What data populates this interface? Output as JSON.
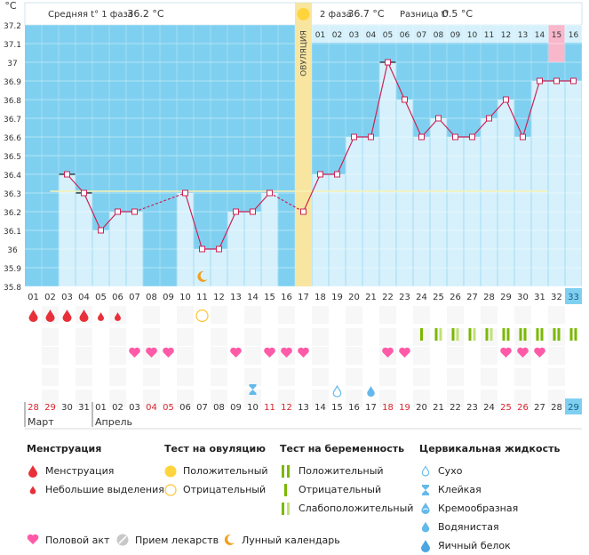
{
  "chart_data": {
    "type": "line",
    "y_unit": "°C",
    "ylim": [
      35.8,
      37.2
    ],
    "y_ticks": [
      "37.2",
      "37.1",
      "37",
      "36.9",
      "36.8",
      "36.7",
      "36.6",
      "36.5",
      "36.4",
      "36.3",
      "36.2",
      "36.1",
      "36",
      "35.9",
      "35.8"
    ],
    "header": {
      "phase1_label": "Средняя t° 1 фаза",
      "phase1_value": "36.2 °C",
      "phase2_label": "2 фаза",
      "phase2_value": "36.7 °C",
      "diff_label": "Разница t°",
      "diff_value": "0.5 °C"
    },
    "ovulation_label": "ОВУЛЯЦИЯ",
    "ovulation_day": 17,
    "cycle_days": [
      "01",
      "02",
      "03",
      "04",
      "05",
      "06",
      "07",
      "08",
      "09",
      "10",
      "11",
      "12",
      "13",
      "14",
      "15",
      "16",
      "17",
      "18",
      "19",
      "20",
      "21",
      "22",
      "23",
      "24",
      "25",
      "26",
      "27",
      "28",
      "29",
      "30",
      "31",
      "32",
      "33"
    ],
    "phase2_days": [
      "01",
      "02",
      "03",
      "04",
      "05",
      "06",
      "07",
      "08",
      "09",
      "10",
      "11",
      "12",
      "13",
      "14",
      "15",
      "16"
    ],
    "temperatures": [
      null,
      null,
      36.4,
      36.3,
      36.1,
      36.2,
      36.2,
      null,
      null,
      36.3,
      36.0,
      36.0,
      36.2,
      36.2,
      36.3,
      null,
      36.2,
      36.4,
      36.4,
      36.6,
      36.6,
      37.0,
      36.8,
      36.6,
      36.7,
      36.6,
      36.6,
      36.7,
      36.8,
      36.6,
      36.9,
      36.9,
      36.9
    ],
    "marked_days": [
      3,
      4,
      22
    ],
    "dashed_segments": [
      [
        7,
        10
      ],
      [
        15,
        17
      ]
    ],
    "coverline": 36.3,
    "predicted_days": [
      32
    ],
    "calendar_dates": [
      "28",
      "29",
      "30",
      "31",
      "01",
      "02",
      "03",
      "04",
      "05",
      "06",
      "07",
      "08",
      "09",
      "10",
      "11",
      "12",
      "13",
      "14",
      "15",
      "16",
      "17",
      "18",
      "19",
      "20",
      "21",
      "22",
      "23",
      "24",
      "25",
      "26",
      "27",
      "28",
      "29"
    ],
    "weekend_days": [
      1,
      2,
      8,
      9,
      15,
      16,
      22,
      23,
      29,
      30
    ],
    "month_labels": [
      {
        "name": "Март",
        "day": 1
      },
      {
        "name": "Апрель",
        "day": 5
      }
    ],
    "markers": {
      "menstruation": [
        1,
        2,
        3,
        4
      ],
      "light_bleeding": [
        5,
        6
      ],
      "ovulation_negative": [
        11
      ],
      "moon": [
        11
      ],
      "pregnancy_positive": [
        29,
        30,
        31,
        32,
        33
      ],
      "pregnancy_negative": [
        24
      ],
      "pregnancy_weak": [
        25,
        26,
        27,
        28
      ],
      "sex": [
        7,
        8,
        9,
        13,
        15,
        16,
        17,
        22,
        23,
        29,
        30,
        31
      ],
      "sticky": [
        14
      ],
      "dry": [
        19
      ],
      "watery": [
        21
      ]
    }
  },
  "legend": {
    "menstruation": {
      "title": "Менструация",
      "items": [
        "Менструация",
        "Небольшие выделения"
      ]
    },
    "ovulation_test": {
      "title": "Тест на овуляцию",
      "items": [
        "Положительный",
        "Отрицательный"
      ]
    },
    "pregnancy_test": {
      "title": "Тест на беременность",
      "items": [
        "Положительный",
        "Отрицательный",
        "Слабоположительный"
      ]
    },
    "cervical": {
      "title": "Цервикальная жидкость",
      "items": [
        "Сухо",
        "Клейкая",
        "Кремообразная",
        "Водянистая",
        "Яичный белок"
      ]
    },
    "bottom": [
      "Половой акт",
      "Прием лекарств",
      "Лунный календарь"
    ]
  },
  "colors": {
    "grid_bg": "#7fd0f0",
    "bar": "#d6f1fc",
    "line": "#cc2255",
    "ovulation": "#f8e6a0",
    "menstruation": "#e8303a",
    "heart": "#ff5aa8",
    "preg_pos": "#7ab800",
    "preg_weak": "#c2e076",
    "ovul_pos": "#ffd43c",
    "ovul_neg": "#ffc430",
    "cervix": "#64b9ea",
    "predicted": "#f8b7cb",
    "coverline": "#f8f3b0"
  }
}
